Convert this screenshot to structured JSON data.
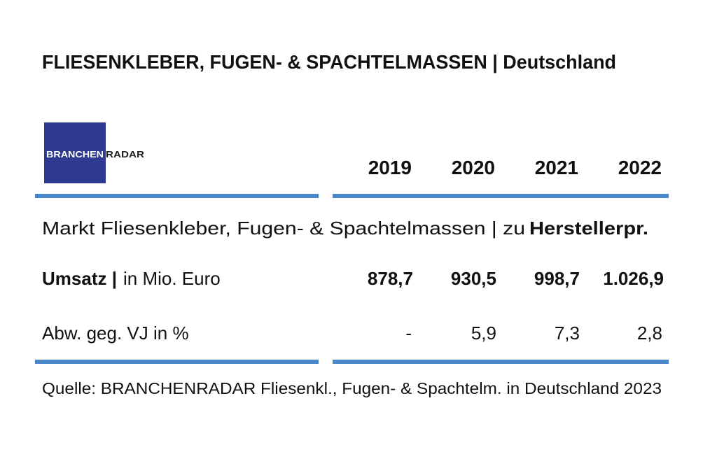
{
  "header": {
    "title": "FLIESENKLEBER, FUGEN- & SPACHTELMASSEN | Deutschland"
  },
  "logo": {
    "part1": "BRANCHEN",
    "part2": "RADAR"
  },
  "table": {
    "columns": [
      "2019",
      "2020",
      "2021",
      "2022"
    ],
    "section": {
      "text": "Markt Fliesenkleber, Fugen- & Spachtelmassen | zu",
      "bold": "Herstellerpr."
    },
    "rows": [
      {
        "label": "Umsatz |",
        "unit": "in Mio. Euro",
        "cells": [
          "878,7",
          "930,5",
          "998,7",
          "1.026,9"
        ]
      },
      {
        "label": "Abw. geg. VJ in %",
        "cells": [
          "-",
          "5,9",
          "7,3",
          "2,8"
        ]
      }
    ]
  },
  "footer": {
    "source": "Quelle: BRANCHENRADAR Fliesenkl., Fugen- & Spachtelm. in Deutschland 2023"
  }
}
